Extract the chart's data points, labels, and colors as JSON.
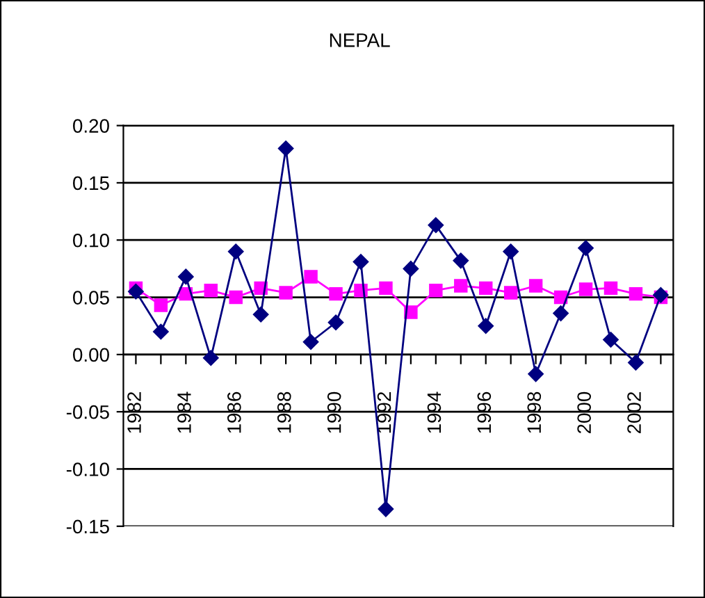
{
  "chart_data": {
    "type": "line",
    "title": "NEPAL",
    "categories": [
      "1982",
      null,
      "1984",
      null,
      "1986",
      null,
      "1988",
      null,
      "1990",
      null,
      "1992",
      null,
      "1994",
      null,
      "1996",
      null,
      "1998",
      null,
      "2000",
      null,
      "2002",
      null
    ],
    "series": [
      {
        "color": "#000080",
        "marker": "diamond",
        "values": [
          0.055,
          0.02,
          0.068,
          -0.003,
          0.09,
          0.035,
          0.18,
          0.011,
          0.028,
          0.081,
          -0.135,
          0.075,
          0.113,
          0.082,
          0.025,
          0.09,
          -0.017,
          0.036,
          0.093,
          0.013,
          -0.007,
          0.052
        ]
      },
      {
        "color": "#ff00ff",
        "marker": "square",
        "values": [
          0.058,
          0.043,
          0.053,
          0.056,
          0.05,
          0.058,
          0.054,
          0.068,
          0.053,
          0.056,
          0.058,
          0.037,
          0.056,
          0.06,
          0.058,
          0.054,
          0.06,
          0.05,
          0.057,
          0.058,
          0.053,
          0.05
        ]
      }
    ],
    "ylim": [
      -0.15,
      0.2
    ],
    "yticks": [
      {
        "value": -0.15,
        "label": "-0.15"
      },
      {
        "value": -0.1,
        "label": "-0.10"
      },
      {
        "value": -0.05,
        "label": "-0.05"
      },
      {
        "value": 0,
        "label": "0.00"
      },
      {
        "value": 0.05,
        "label": "0.05"
      },
      {
        "value": 0.1,
        "label": "0.10"
      },
      {
        "value": 0.15,
        "label": "0.15"
      },
      {
        "value": 0.2,
        "label": "0.20"
      }
    ],
    "grid": "y",
    "legend": false
  }
}
